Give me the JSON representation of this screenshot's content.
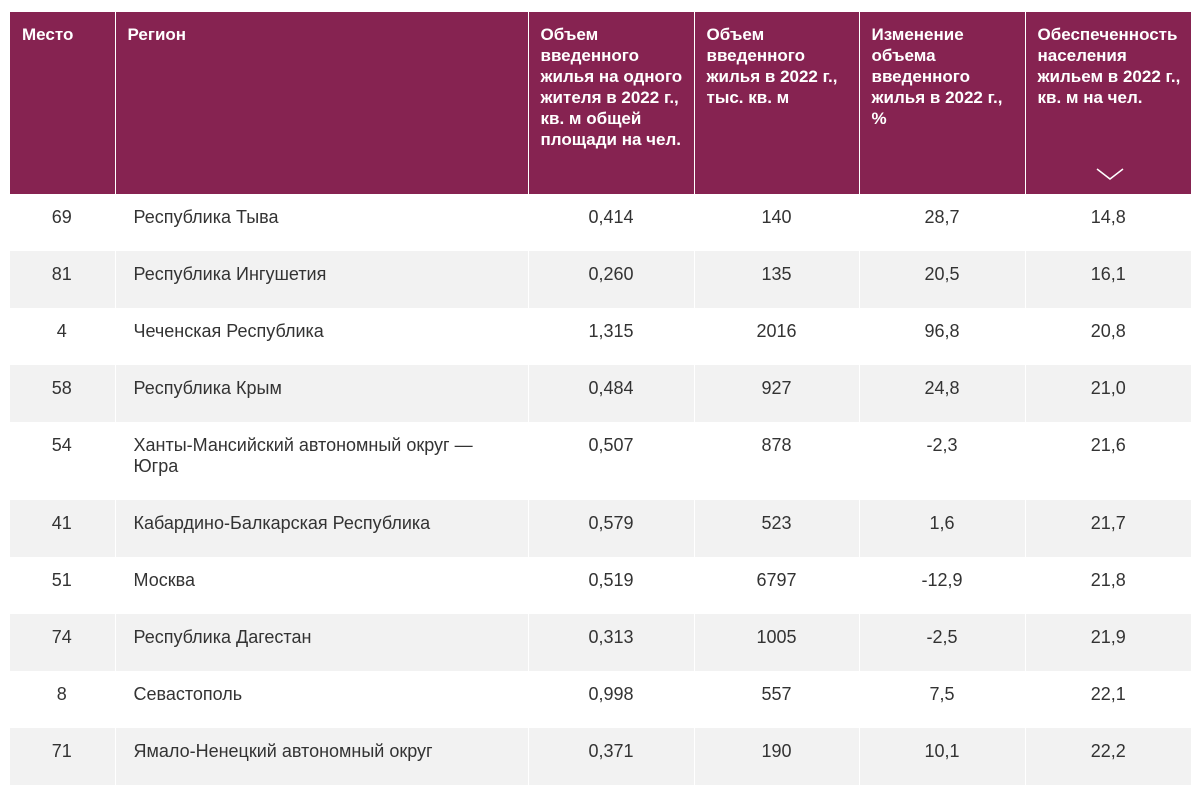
{
  "table": {
    "headers": [
      "Место",
      "Регион",
      "Объем введенного жилья на одного жителя в 2022 г., кв. м общей площади на чел.",
      "Объем введенного жилья в 2022 г., тыс. кв. м",
      "Изменение объема введенного жилья в 2022 г., %",
      "Обеспеченность населения жильем в 2022 г., кв. м на чел."
    ],
    "sort_icon": "chevron-down-icon",
    "header_color": "#862351",
    "rows": [
      [
        "69",
        "Республика Тыва",
        "0,414",
        "140",
        "28,7",
        "14,8"
      ],
      [
        "81",
        "Республика Ингушетия",
        "0,260",
        "135",
        "20,5",
        "16,1"
      ],
      [
        "4",
        "Чеченская Республика",
        "1,315",
        "2016",
        "96,8",
        "20,8"
      ],
      [
        "58",
        "Республика Крым",
        "0,484",
        "927",
        "24,8",
        "21,0"
      ],
      [
        "54",
        "Ханты-Мансийский автономный округ — Югра",
        "0,507",
        "878",
        "-2,3",
        "21,6"
      ],
      [
        "41",
        "Кабардино-Балкарская Республика",
        "0,579",
        "523",
        "1,6",
        "21,7"
      ],
      [
        "51",
        "Москва",
        "0,519",
        "6797",
        "-12,9",
        "21,8"
      ],
      [
        "74",
        "Республика Дагестан",
        "0,313",
        "1005",
        "-2,5",
        "21,9"
      ],
      [
        "8",
        "Севастополь",
        "0,998",
        "557",
        "7,5",
        "22,1"
      ],
      [
        "71",
        "Ямало-Ненецкий автономный округ",
        "0,371",
        "190",
        "10,1",
        "22,2"
      ]
    ]
  }
}
